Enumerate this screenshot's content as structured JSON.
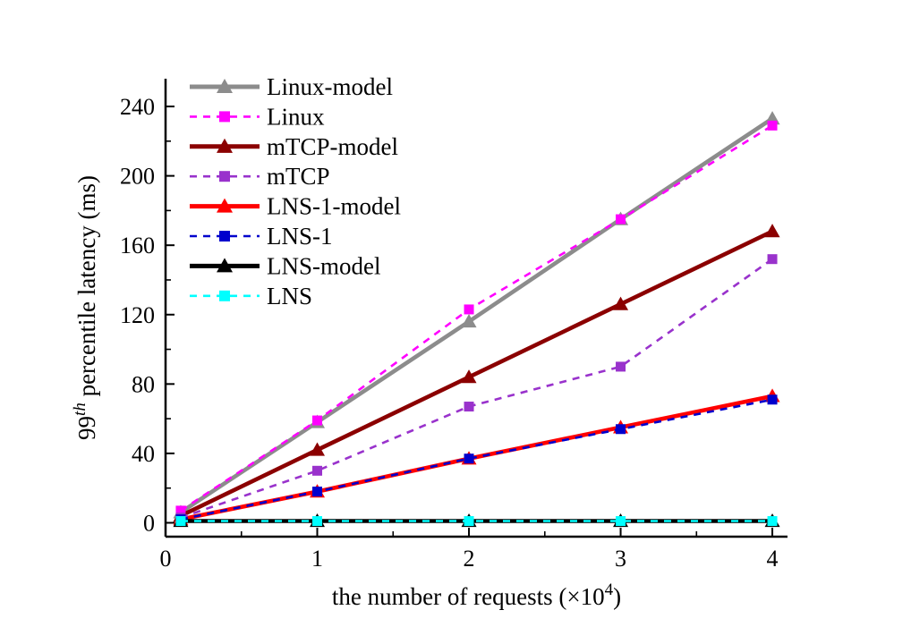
{
  "chart_data": {
    "type": "line",
    "title": "",
    "x": [
      0.1,
      1,
      2,
      3,
      4
    ],
    "series": [
      {
        "name": "Linux-model",
        "values": [
          6,
          58,
          116,
          175,
          233
        ],
        "color": "#8c8c8c",
        "style": "solid",
        "marker": "triangle"
      },
      {
        "name": "Linux",
        "values": [
          7,
          59,
          123,
          175,
          229
        ],
        "color": "#ff00ff",
        "style": "dashed",
        "marker": "square"
      },
      {
        "name": "mTCP-model",
        "values": [
          4,
          42,
          84,
          126,
          168
        ],
        "color": "#8b0000",
        "style": "solid",
        "marker": "triangle"
      },
      {
        "name": "mTCP",
        "values": [
          3,
          30,
          67,
          90,
          152
        ],
        "color": "#9932cc",
        "style": "dashed",
        "marker": "square"
      },
      {
        "name": "LNS-1-model",
        "values": [
          2,
          18,
          37,
          55,
          73
        ],
        "color": "#ff0000",
        "style": "solid",
        "marker": "triangle"
      },
      {
        "name": "LNS-1",
        "values": [
          2,
          18,
          37,
          54,
          71
        ],
        "color": "#0000cd",
        "style": "dashed",
        "marker": "square"
      },
      {
        "name": "LNS-model",
        "values": [
          1,
          1,
          1,
          1,
          1
        ],
        "color": "#000000",
        "style": "solid",
        "marker": "triangle"
      },
      {
        "name": "LNS",
        "values": [
          1,
          1,
          1,
          1,
          1
        ],
        "color": "#00ffff",
        "style": "dashed",
        "marker": "square"
      }
    ],
    "xlabel": {
      "pre": "the number of requests (×10",
      "sup": "4",
      "post": ")"
    },
    "ylabel": {
      "pre": "99",
      "sup": "th",
      "post": " percentile latency (ms)"
    },
    "xticks": [
      0,
      1,
      2,
      3,
      4
    ],
    "yticks": [
      0,
      40,
      80,
      120,
      160,
      200,
      240
    ],
    "xlim": [
      0,
      4.1
    ],
    "ylim": [
      -8,
      256
    ],
    "grid": false,
    "legend_position": "top-left",
    "axis_color": "#000000",
    "background": "#ffffff"
  }
}
